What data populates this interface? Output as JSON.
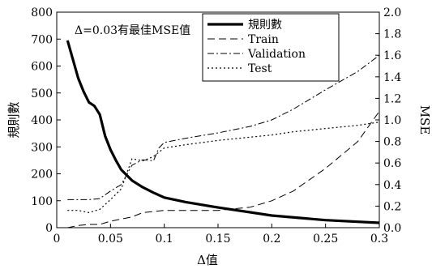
{
  "chart_data": {
    "type": "line",
    "title": "",
    "xlabel": "Δ值",
    "ylabel_left": "規則數",
    "ylabel_right": "MSE",
    "xlim": [
      0,
      0.3
    ],
    "ylim_left": [
      0,
      800
    ],
    "ylim_right": [
      0,
      2.0
    ],
    "x_ticks": [
      "0",
      "0.05",
      "0.1",
      "0.15",
      "0.2",
      "0.25",
      "0.3"
    ],
    "y_left_ticks": [
      "0",
      "100",
      "200",
      "300",
      "400",
      "500",
      "600",
      "700",
      "800"
    ],
    "y_right_ticks": [
      "0.0",
      "0.2",
      "0.4",
      "0.6",
      "0.8",
      "1.0",
      "1.2",
      "1.4",
      "1.6",
      "1.8",
      "2.0"
    ],
    "annotation": "Δ=0.03有最佳MSE值",
    "legend_position": "top-center",
    "grid": false,
    "series": [
      {
        "name": "規則數",
        "axis": "left",
        "style": "thick-solid",
        "x": [
          0.01,
          0.015,
          0.02,
          0.025,
          0.03,
          0.035,
          0.04,
          0.045,
          0.05,
          0.055,
          0.06,
          0.07,
          0.08,
          0.09,
          0.1,
          0.12,
          0.15,
          0.2,
          0.25,
          0.3
        ],
        "values": [
          695,
          625,
          555,
          505,
          465,
          452,
          420,
          340,
          290,
          250,
          215,
          175,
          150,
          130,
          112,
          95,
          75,
          45,
          28,
          18
        ]
      },
      {
        "name": "Train",
        "axis": "right",
        "style": "long-dash",
        "x": [
          0.01,
          0.02,
          0.03,
          0.04,
          0.05,
          0.06,
          0.07,
          0.08,
          0.09,
          0.1,
          0.12,
          0.15,
          0.18,
          0.2,
          0.22,
          0.25,
          0.28,
          0.3
        ],
        "values": [
          0.0,
          0.02,
          0.03,
          0.03,
          0.06,
          0.08,
          0.1,
          0.14,
          0.15,
          0.16,
          0.16,
          0.16,
          0.19,
          0.25,
          0.34,
          0.55,
          0.8,
          1.08
        ]
      },
      {
        "name": "Validation",
        "axis": "right",
        "style": "dash-dot",
        "x": [
          0.01,
          0.02,
          0.03,
          0.04,
          0.05,
          0.06,
          0.07,
          0.08,
          0.09,
          0.095,
          0.1,
          0.12,
          0.15,
          0.18,
          0.2,
          0.22,
          0.25,
          0.28,
          0.3
        ],
        "values": [
          0.26,
          0.26,
          0.26,
          0.27,
          0.34,
          0.4,
          0.58,
          0.63,
          0.62,
          0.74,
          0.79,
          0.83,
          0.88,
          0.94,
          1.0,
          1.1,
          1.28,
          1.45,
          1.6
        ]
      },
      {
        "name": "Test",
        "axis": "right",
        "style": "dotted",
        "x": [
          0.01,
          0.02,
          0.03,
          0.04,
          0.05,
          0.06,
          0.07,
          0.08,
          0.09,
          0.1,
          0.12,
          0.15,
          0.18,
          0.2,
          0.22,
          0.25,
          0.28,
          0.3
        ],
        "values": [
          0.16,
          0.16,
          0.14,
          0.17,
          0.26,
          0.36,
          0.64,
          0.62,
          0.66,
          0.74,
          0.77,
          0.81,
          0.84,
          0.86,
          0.89,
          0.92,
          0.95,
          0.98
        ]
      }
    ]
  }
}
